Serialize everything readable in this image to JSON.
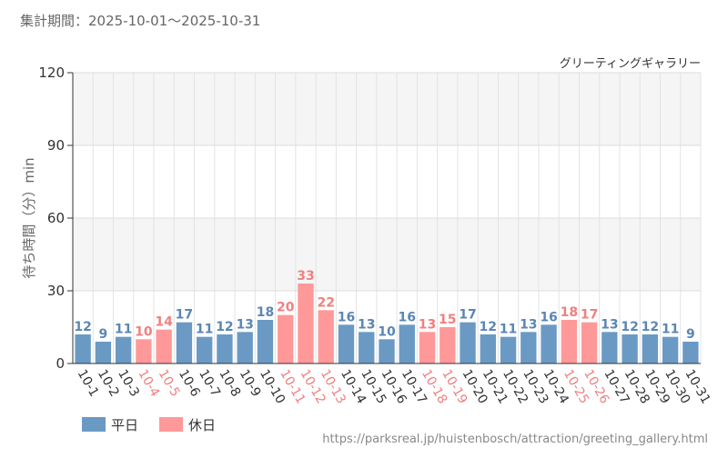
{
  "header": {
    "period": "集計期間：2025-10-01～2025-10-31"
  },
  "colors": {
    "weekday": "#6a9ac4",
    "holiday": "#ff9999",
    "weekday_text": "#5b86b4",
    "holiday_text": "#f08080"
  },
  "legend": {
    "weekday": "平日",
    "holiday": "休日"
  },
  "source": "https://parksreal.jp/huistenbosch/attraction/greeting_gallery.html",
  "chart_data": {
    "type": "bar",
    "title": "グリーティングギャラリー",
    "ylabel": "待ち時間（分）min",
    "xlabel": "",
    "ylim": [
      0,
      120
    ],
    "yticks": [
      "0",
      "30",
      "60",
      "90",
      "120"
    ],
    "categories": [
      "10-1",
      "10-2",
      "10-3",
      "10-4",
      "10-5",
      "10-6",
      "10-7",
      "10-8",
      "10-9",
      "10-10",
      "10-11",
      "10-12",
      "10-13",
      "10-14",
      "10-15",
      "10-16",
      "10-17",
      "10-18",
      "10-19",
      "10-20",
      "10-21",
      "10-22",
      "10-23",
      "10-24",
      "10-25",
      "10-26",
      "10-27",
      "10-28",
      "10-29",
      "10-30",
      "10-31"
    ],
    "values": [
      12,
      9,
      11,
      10,
      14,
      17,
      11,
      12,
      13,
      18,
      20,
      33,
      22,
      16,
      13,
      10,
      16,
      13,
      15,
      17,
      12,
      11,
      13,
      16,
      18,
      17,
      13,
      12,
      12,
      11,
      9
    ],
    "day_type": [
      "weekday",
      "weekday",
      "weekday",
      "holiday",
      "holiday",
      "weekday",
      "weekday",
      "weekday",
      "weekday",
      "weekday",
      "holiday",
      "holiday",
      "holiday",
      "weekday",
      "weekday",
      "weekday",
      "weekday",
      "holiday",
      "holiday",
      "weekday",
      "weekday",
      "weekday",
      "weekday",
      "weekday",
      "holiday",
      "holiday",
      "weekday",
      "weekday",
      "weekday",
      "weekday",
      "weekday"
    ]
  }
}
